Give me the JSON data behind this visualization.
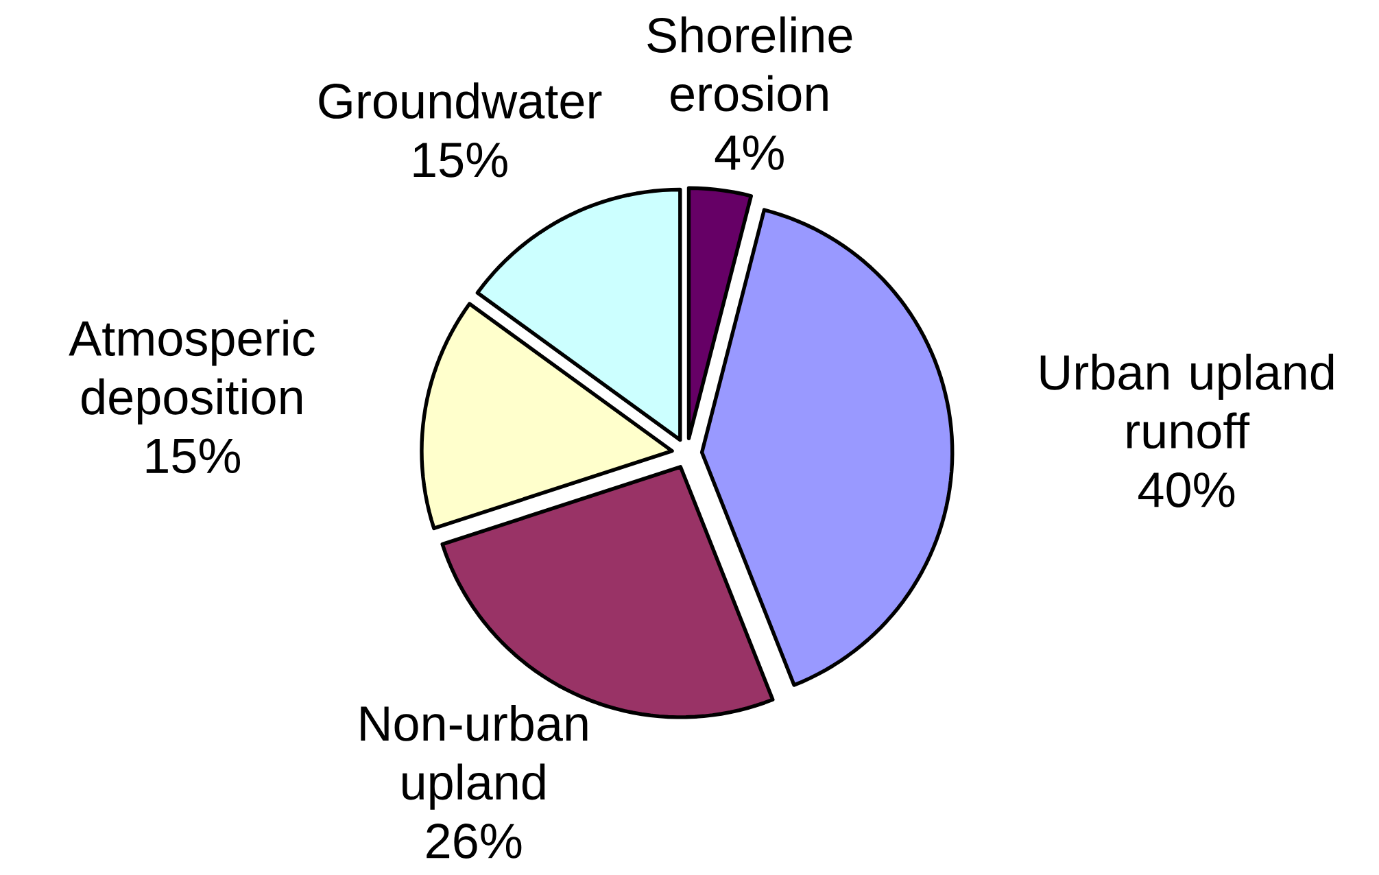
{
  "chart_data": {
    "type": "pie",
    "categories": [
      "Shoreline erosion",
      "Urban upland runoff",
      "Non-urban upland",
      "Atmosperic deposition",
      "Groundwater"
    ],
    "values": [
      4,
      40,
      26,
      15,
      15
    ],
    "value_labels": [
      "4%",
      "40%",
      "26%",
      "15%",
      "15%"
    ],
    "colors": [
      "#660066",
      "#9999ff",
      "#993366",
      "#ffffcc",
      "#ccffff"
    ]
  }
}
